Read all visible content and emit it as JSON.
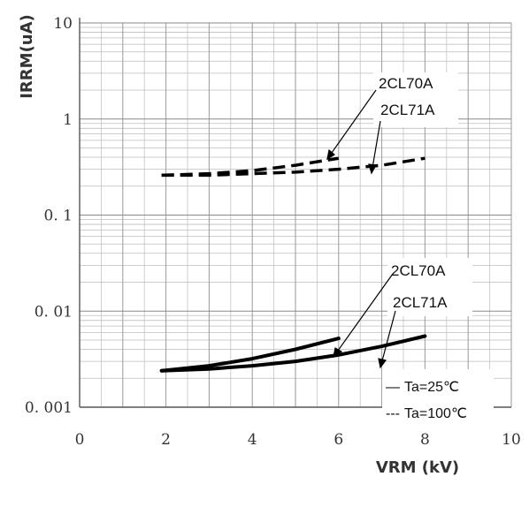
{
  "chart_data": {
    "type": "line",
    "title": "",
    "xlabel": "VRM (kV)",
    "ylabel": "IRRM(uA)",
    "xlim": [
      0,
      10
    ],
    "ylim": [
      0.001,
      10
    ],
    "y_scale": "log",
    "grid": true,
    "x_ticks": [
      "0",
      "2",
      "4",
      "6",
      "8",
      "10"
    ],
    "y_ticks": [
      "0. 001",
      "0. 01",
      "0. 1",
      "1",
      "10"
    ],
    "series": [
      {
        "name": "2CL70A",
        "condition": "Ta=100℃",
        "style": "dashed",
        "x": [
          1.9,
          3,
          4,
          5,
          6
        ],
        "y": [
          0.26,
          0.27,
          0.29,
          0.33,
          0.39
        ]
      },
      {
        "name": "2CL71A",
        "condition": "Ta=100℃",
        "style": "dashed",
        "x": [
          1.9,
          3,
          4,
          5,
          6,
          7,
          8
        ],
        "y": [
          0.26,
          0.26,
          0.27,
          0.28,
          0.3,
          0.33,
          0.39
        ]
      },
      {
        "name": "2CL70A",
        "condition": "Ta=25℃",
        "style": "solid",
        "x": [
          1.9,
          3,
          4,
          5,
          6
        ],
        "y": [
          0.0024,
          0.0027,
          0.0032,
          0.004,
          0.0052
        ]
      },
      {
        "name": "2CL71A",
        "condition": "Ta=25℃",
        "style": "solid",
        "x": [
          1.9,
          3,
          4,
          5,
          6,
          7,
          8
        ],
        "y": [
          0.0024,
          0.0025,
          0.0027,
          0.003,
          0.0035,
          0.0043,
          0.0055
        ]
      }
    ],
    "annotations": {
      "upper": [
        "2CL70A",
        "2CL71A"
      ],
      "lower": [
        "2CL70A",
        "2CL71A"
      ]
    },
    "legend": {
      "entries": [
        {
          "marker": "—",
          "label": "Ta=25℃"
        },
        {
          "marker": "---",
          "label": "Ta=100℃"
        }
      ],
      "placement": "bottom-right"
    }
  }
}
